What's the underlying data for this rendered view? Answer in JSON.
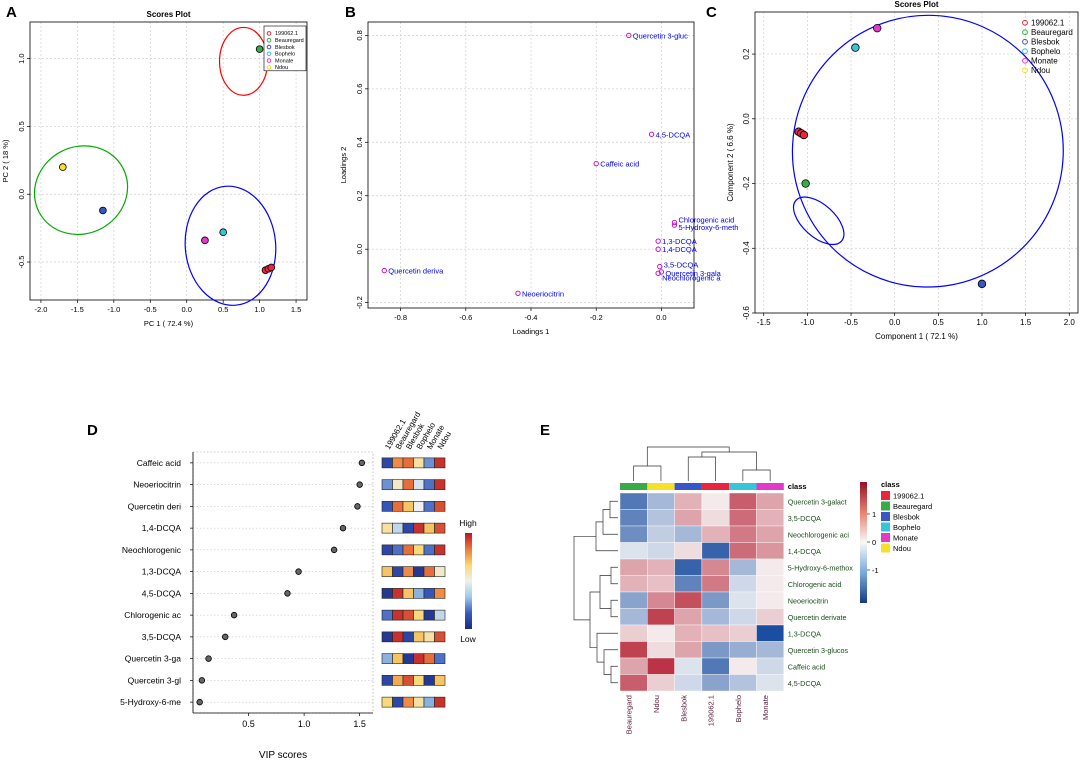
{
  "panel_letters": [
    "A",
    "B",
    "C",
    "D",
    "E"
  ],
  "colors": {
    "class_199062_1": "#e8263f",
    "class_Beauregard": "#3aaa48",
    "class_Blesbok": "#3a55c8",
    "class_Bophelo": "#36c6d8",
    "class_Monate": "#e23ac8",
    "class_Ndou": "#f6e12a",
    "ellipse_red": "#ff0000",
    "ellipse_green": "#00aa00",
    "ellipse_blue": "#0000ff",
    "loading_point": "#c000c0",
    "loading_text": "#0000ee"
  },
  "chart_data": [
    {
      "panel": "A",
      "type": "scatter",
      "title": "Scores Plot",
      "xlabel": "PC 1 ( 72.4 %)",
      "ylabel": "PC 2 ( 18 %)",
      "xlim": [
        -2.15,
        1.65
      ],
      "ylim": [
        -0.78,
        1.27
      ],
      "xticks": [
        -2.0,
        -1.5,
        -1.0,
        -0.5,
        0.0,
        0.5,
        1.0,
        1.5
      ],
      "yticks": [
        -0.5,
        0.0,
        0.5,
        1.0
      ],
      "xtick_labels": [
        "-2.0",
        "-1.5",
        "-1.0",
        "-0.5",
        "0.0",
        "0.5",
        "1.0",
        "1.5"
      ],
      "ytick_labels": [
        "-0.5",
        "0.0",
        "0.5",
        "1.0"
      ],
      "legend": [
        "199062.1",
        "Beauregard",
        "Blesbok",
        "Bophelo",
        "Monate",
        "Ndou"
      ],
      "legend_placement": "top-right",
      "points": [
        {
          "group": "Beauregard",
          "x": 1.0,
          "y": 1.07
        },
        {
          "group": "Ndou",
          "x": -1.7,
          "y": 0.2
        },
        {
          "group": "Blesbok",
          "x": -1.15,
          "y": -0.12
        },
        {
          "group": "Bophelo",
          "x": 0.5,
          "y": -0.28
        },
        {
          "group": "Monate",
          "x": 0.25,
          "y": -0.34
        },
        {
          "group": "199062.1",
          "x": 1.08,
          "y": -0.56
        },
        {
          "group": "199062.1",
          "x": 1.12,
          "y": -0.55
        },
        {
          "group": "199062.1",
          "x": 1.16,
          "y": -0.54
        }
      ],
      "ellipses": [
        {
          "color": "red",
          "cx": 0.78,
          "cy": 0.98,
          "rx": 0.33,
          "ry": 0.25,
          "angle": 0
        },
        {
          "color": "green",
          "cx": -1.45,
          "cy": 0.03,
          "rx": 0.65,
          "ry": 0.32,
          "angle": -28
        },
        {
          "color": "blue",
          "cx": 0.6,
          "cy": -0.38,
          "rx": 0.62,
          "ry": 0.44,
          "angle": -5
        }
      ]
    },
    {
      "panel": "B",
      "type": "scatter",
      "title": "",
      "xlabel": "Loadings 1",
      "ylabel": "Loadings 2",
      "xlim": [
        -0.9,
        0.1
      ],
      "ylim": [
        -0.22,
        0.85
      ],
      "xticks": [
        -0.8,
        -0.6,
        -0.4,
        -0.2,
        0.0
      ],
      "yticks": [
        -0.2,
        0.0,
        0.2,
        0.4,
        0.6,
        0.8
      ],
      "xtick_labels": [
        "-0.8",
        "-0.6",
        "-0.4",
        "-0.2",
        "0.0"
      ],
      "ytick_labels": [
        "-0.2",
        "0.0",
        "0.2",
        "0.4",
        "0.6",
        "0.8"
      ],
      "points": [
        {
          "label": "Quercetin 3-gluc",
          "x": -0.1,
          "y": 0.8
        },
        {
          "label": "4,5-DCQA",
          "x": -0.03,
          "y": 0.43
        },
        {
          "label": "Caffeic acid",
          "x": -0.2,
          "y": 0.32
        },
        {
          "label": "Chlorogenic acid",
          "x": 0.04,
          "y": 0.1
        },
        {
          "label": "5-Hydroxy-6-meth",
          "x": 0.04,
          "y": 0.09
        },
        {
          "label": "1,3-DCQA",
          "x": -0.01,
          "y": 0.03
        },
        {
          "label": "1,4-DCQA",
          "x": -0.01,
          "y": 0.0
        },
        {
          "label": "Quercetin deriva",
          "x": -0.85,
          "y": -0.08
        },
        {
          "label": "3,5-DCQA",
          "x": -0.005,
          "y": -0.065
        },
        {
          "label": "Quercetin 3-gala",
          "x": 0.0,
          "y": -0.085
        },
        {
          "label": "Neochlorogenic a",
          "x": -0.01,
          "y": -0.09
        },
        {
          "label": "Neoeriocitrin",
          "x": -0.44,
          "y": -0.165
        }
      ]
    },
    {
      "panel": "C",
      "type": "scatter",
      "title": "Scores Plot",
      "xlabel": "Component 1 ( 72.1 %)",
      "ylabel": "Component 2 ( 6.6 %)",
      "xlim": [
        -1.6,
        2.1
      ],
      "ylim": [
        -0.6,
        0.33
      ],
      "xticks": [
        -1.5,
        -1.0,
        -0.5,
        0.0,
        0.5,
        1.0,
        1.5,
        2.0
      ],
      "yticks": [
        -0.6,
        -0.4,
        -0.2,
        0.0,
        0.2
      ],
      "xtick_labels": [
        "-1.5",
        "-1.0",
        "-0.5",
        "0.0",
        "0.5",
        "1.0",
        "1.5",
        "2.0"
      ],
      "ytick_labels": [
        "-0.6",
        "-0.4",
        "-0.2",
        "0.0",
        "0.2"
      ],
      "legend": [
        "199062.1",
        "Beauregard",
        "Blesbok",
        "Bophelo",
        "Monate",
        "Ndou"
      ],
      "legend_placement": "top-right",
      "points": [
        {
          "group": "Monate",
          "x": -0.2,
          "y": 0.28
        },
        {
          "group": "Bophelo",
          "x": -0.45,
          "y": 0.22
        },
        {
          "group": "199062.1",
          "x": -1.1,
          "y": -0.04
        },
        {
          "group": "199062.1",
          "x": -1.07,
          "y": -0.045
        },
        {
          "group": "199062.1",
          "x": -1.04,
          "y": -0.05
        },
        {
          "group": "Beauregard",
          "x": -1.02,
          "y": -0.2
        },
        {
          "group": "Blesbok",
          "x": 1.0,
          "y": -0.51
        }
      ],
      "ellipses": [
        {
          "color": "blue",
          "cx": 0.38,
          "cy": -0.1,
          "rx": 1.55,
          "ry": 0.42,
          "angle": 24
        },
        {
          "color": "blue",
          "cx": -0.87,
          "cy": -0.315,
          "rx": 0.35,
          "ry": 0.05,
          "angle": 42
        }
      ]
    },
    {
      "panel": "D",
      "type": "dot",
      "xlabel": "VIP scores",
      "xlim": [
        0.0,
        1.62
      ],
      "xticks": [
        0.5,
        1.0,
        1.5
      ],
      "xtick_labels": [
        "0.5",
        "1.0",
        "1.5"
      ],
      "features": [
        "Caffeic acid",
        "Neoeriocitrin",
        "Quercetin deri",
        "1,4-DCQA",
        "Neochlorogenic",
        "1,3-DCQA",
        "4,5-DCQA",
        "Chlorogenic ac",
        "3,5-DCQA",
        "Quercetin 3-ga",
        "Quercetin 3-gl",
        "5-Hydroxy-6-me"
      ],
      "values": [
        1.52,
        1.5,
        1.48,
        1.35,
        1.27,
        0.95,
        0.85,
        0.37,
        0.29,
        0.14,
        0.08,
        0.06
      ],
      "columns": [
        "199062.1",
        "Beauregard",
        "Blesbok",
        "Bophelo",
        "Monate",
        "Ndou"
      ],
      "heat": [
        [
          0.1,
          0.8,
          0.85,
          0.6,
          0.25,
          0.95
        ],
        [
          0.25,
          0.55,
          0.85,
          0.45,
          0.2,
          0.95
        ],
        [
          0.15,
          0.85,
          0.7,
          0.5,
          0.2,
          0.9
        ],
        [
          0.6,
          0.4,
          0.1,
          0.95,
          0.7,
          0.9
        ],
        [
          0.1,
          0.2,
          0.85,
          0.65,
          0.2,
          0.95
        ],
        [
          0.7,
          0.1,
          0.8,
          0.05,
          0.85,
          0.55
        ],
        [
          0.05,
          0.95,
          0.7,
          0.3,
          0.15,
          0.8
        ],
        [
          0.2,
          0.95,
          0.9,
          0.65,
          0.05,
          0.4
        ],
        [
          0.05,
          0.95,
          0.1,
          0.7,
          0.6,
          0.9
        ],
        [
          0.3,
          0.7,
          0.05,
          0.95,
          0.85,
          0.2
        ],
        [
          0.1,
          0.75,
          0.9,
          0.65,
          0.05,
          0.7
        ],
        [
          0.65,
          0.1,
          0.8,
          0.6,
          0.3,
          0.95
        ]
      ],
      "colorbar": {
        "high": "High",
        "low": "Low"
      }
    },
    {
      "panel": "E",
      "type": "heatmap",
      "annotation_label": "class",
      "columns": [
        "Beauregard",
        "Ndou",
        "Blesbok",
        "199062.1",
        "Bophelo",
        "Monate"
      ],
      "rows": [
        "Quercetin 3-galact",
        "3,5-DCQA",
        "Neochlorogenic aci",
        "1,4-DCQA",
        "5-Hydroxy-6-methox",
        "Chlorogenic acid",
        "Neoeriocitrin",
        "Quercetin derivate",
        "1,3-DCQA",
        "Quercetin 3-glucos",
        "Caffeic acid",
        "4,5-DCQA"
      ],
      "values": [
        [
          -1.2,
          -0.6,
          0.5,
          0.1,
          1.1,
          0.6
        ],
        [
          -1.1,
          -0.5,
          0.6,
          0.2,
          1.0,
          0.5
        ],
        [
          -1.0,
          -0.4,
          -0.6,
          0.5,
          0.9,
          0.6
        ],
        [
          -0.2,
          -0.3,
          0.2,
          -1.4,
          1.0,
          0.7
        ],
        [
          0.6,
          0.5,
          -1.4,
          0.8,
          -0.6,
          0.1
        ],
        [
          0.5,
          0.4,
          -1.1,
          0.9,
          -0.3,
          0.1
        ],
        [
          -0.8,
          0.8,
          1.2,
          -0.9,
          -0.2,
          0.1
        ],
        [
          -0.6,
          1.3,
          0.6,
          -0.6,
          -0.3,
          0.3
        ],
        [
          0.3,
          0.1,
          0.5,
          0.4,
          0.3,
          -1.6
        ],
        [
          1.3,
          0.2,
          0.6,
          -0.9,
          -0.7,
          -0.6
        ],
        [
          0.6,
          1.4,
          -0.2,
          -1.2,
          0.1,
          -0.3
        ],
        [
          1.1,
          0.3,
          -0.3,
          -0.8,
          -0.5,
          -0.2
        ]
      ],
      "colorbar_ticks": [
        1,
        0,
        -1
      ],
      "colorbar_tick_labels": [
        "1",
        "0",
        "-1"
      ],
      "legend_title": "class",
      "legend": [
        "199062.1",
        "Beauregard",
        "Blesbok",
        "Bophelo",
        "Monate",
        "Ndou"
      ]
    }
  ]
}
